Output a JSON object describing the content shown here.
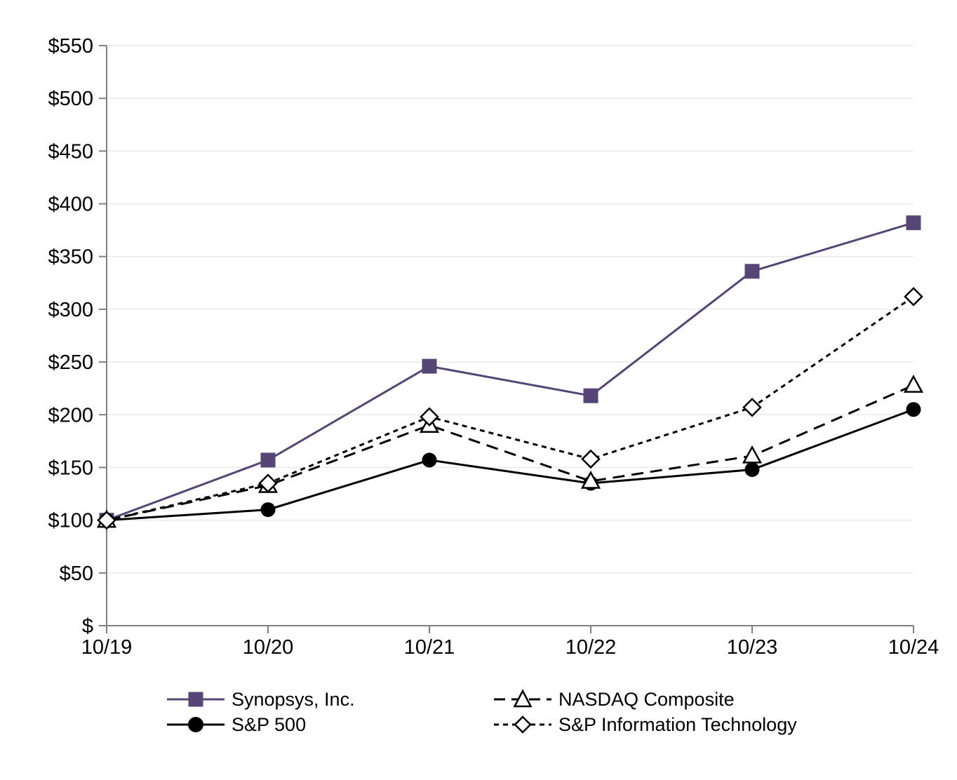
{
  "chart_data": {
    "type": "line",
    "categories": [
      "10/19",
      "10/20",
      "10/21",
      "10/22",
      "10/23",
      "10/24"
    ],
    "series": [
      {
        "name": "Synopsys, Inc.",
        "values": [
          100,
          157,
          246,
          218,
          336,
          382
        ],
        "color": "#564676",
        "marker": "square",
        "marker_style": "filled",
        "line_style": "solid"
      },
      {
        "name": "S&P 500",
        "values": [
          100,
          110,
          157,
          135,
          148,
          205
        ],
        "color": "#000000",
        "marker": "circle",
        "marker_style": "filled",
        "line_style": "solid"
      },
      {
        "name": "NASDAQ Composite",
        "values": [
          100,
          133,
          190,
          137,
          161,
          228
        ],
        "color": "#000000",
        "marker": "triangle",
        "marker_style": "open",
        "line_style": "long-dash"
      },
      {
        "name": "S&P Information Technology",
        "values": [
          100,
          135,
          198,
          158,
          207,
          312
        ],
        "color": "#000000",
        "marker": "diamond",
        "marker_style": "open",
        "line_style": "short-dash"
      }
    ],
    "ylim": [
      0,
      550
    ],
    "ytick_step": 50,
    "ytick_labels": [
      "$",
      "$50",
      "$100",
      "$150",
      "$200",
      "$250",
      "$300",
      "$350",
      "$400",
      "$450",
      "$500",
      "$550"
    ],
    "grid": "horizontal",
    "legend_position": "bottom",
    "colors": {
      "accent_purple": "#564676",
      "axis": "#808080",
      "gridline": "#e9e9e9",
      "text": "#000000",
      "open_marker_fill": "#ffffff",
      "background": "#ffffff"
    }
  }
}
